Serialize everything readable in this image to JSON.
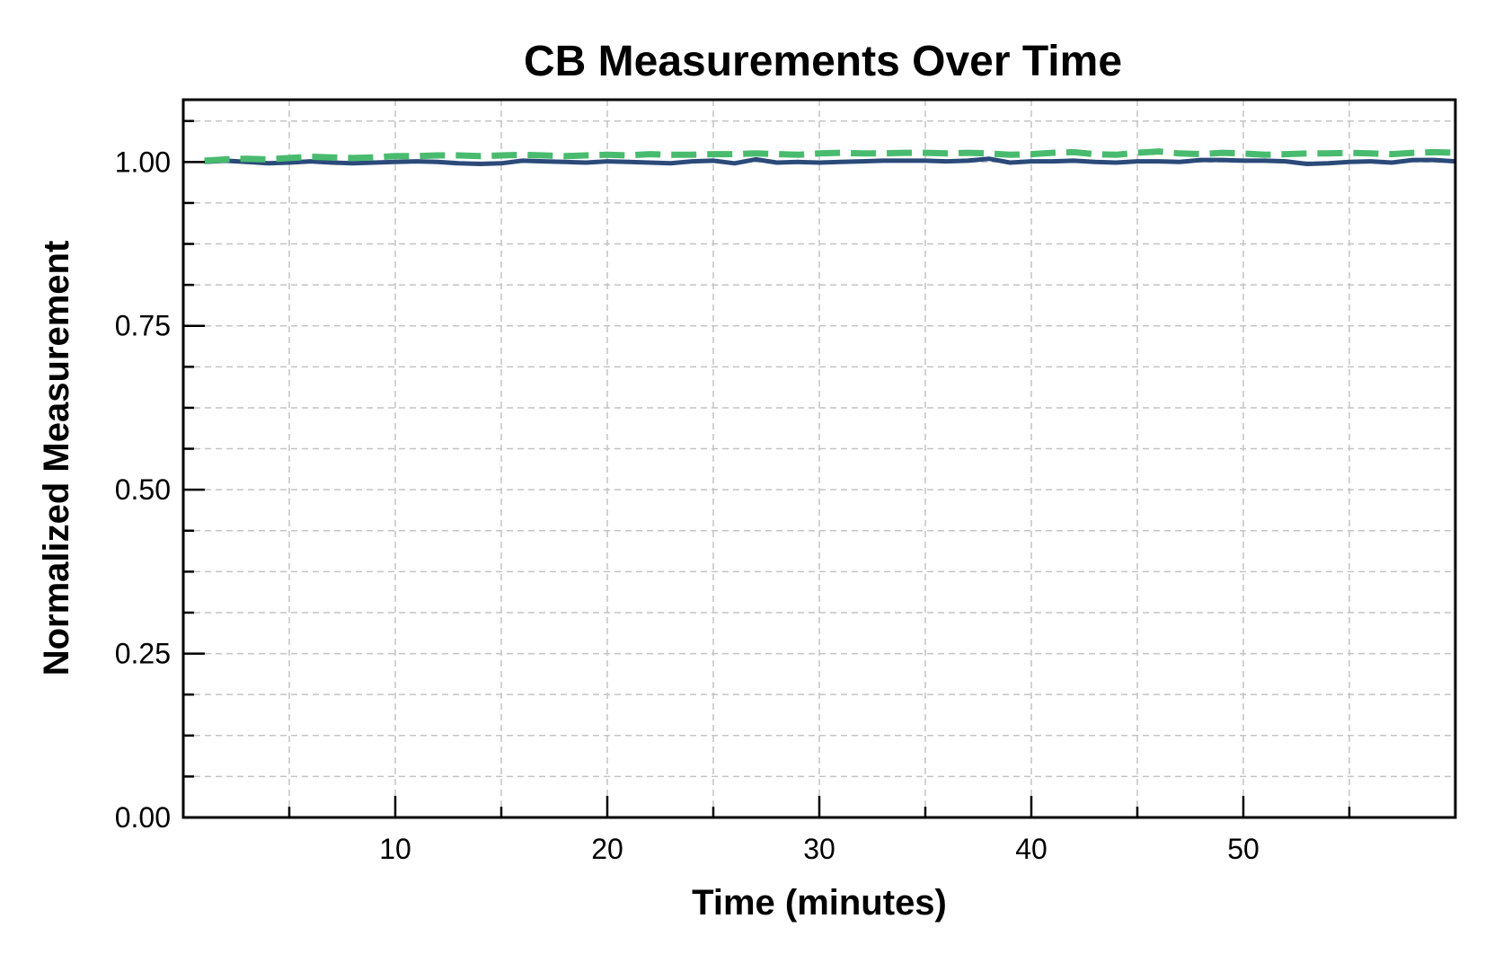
{
  "chart_data": {
    "type": "line",
    "title": "CB Measurements Over Time",
    "xlabel": "Time (minutes)",
    "ylabel": "Normalized Measurement",
    "xlim": [
      0,
      60
    ],
    "ylim": [
      0,
      1.095
    ],
    "x_major_ticks": [
      10,
      20,
      30,
      40,
      50
    ],
    "x_tick_labels": [
      "10",
      "20",
      "30",
      "40",
      "50"
    ],
    "x_minor_ticks": [
      5,
      15,
      25,
      35,
      45,
      55
    ],
    "y_major_ticks": [
      0,
      0.25,
      0.5,
      0.75,
      1.0
    ],
    "y_tick_labels": [
      "0.00",
      "0.25",
      "0.50",
      "0.75",
      "1.00"
    ],
    "y_minor_ticks": [
      0.0625,
      0.125,
      0.1875,
      0.3125,
      0.375,
      0.4375,
      0.5625,
      0.625,
      0.6875,
      0.8125,
      0.875,
      0.9375,
      1.0625
    ],
    "grid": true,
    "legend": "none",
    "x": [
      1,
      2,
      3,
      4,
      5,
      6,
      7,
      8,
      9,
      10,
      11,
      12,
      13,
      14,
      15,
      16,
      17,
      18,
      19,
      20,
      21,
      22,
      23,
      24,
      25,
      26,
      27,
      28,
      29,
      30,
      31,
      32,
      33,
      34,
      35,
      36,
      37,
      38,
      39,
      40,
      41,
      42,
      43,
      44,
      45,
      46,
      47,
      48,
      49,
      50,
      51,
      52,
      53,
      54,
      55,
      56,
      57,
      58,
      59,
      60
    ],
    "series": [
      {
        "color": "#2b4a7a",
        "style": "solid",
        "values": [
          1.0,
          1.002,
          1.0,
          0.998,
          0.999,
          1.001,
          0.999,
          0.998,
          0.999,
          1.0,
          1.001,
          1.0,
          0.998,
          0.997,
          0.998,
          1.002,
          1.001,
          1.0,
          0.999,
          1.001,
          1.0,
          0.999,
          0.998,
          1.001,
          1.002,
          0.998,
          1.004,
          0.999,
          1.0,
          0.999,
          1.0,
          1.001,
          1.002,
          1.002,
          1.002,
          1.001,
          1.002,
          1.005,
          0.999,
          1.001,
          1.001,
          1.002,
          1.0,
          0.999,
          1.001,
          1.001,
          1.0,
          1.003,
          1.003,
          1.002,
          1.002,
          1.001,
          0.997,
          0.998,
          1.0,
          1.001,
          0.999,
          1.003,
          1.003,
          1.001
        ]
      },
      {
        "color": "#49bb6f",
        "style": "dashed",
        "values": [
          1.002,
          1.004,
          1.005,
          1.004,
          1.006,
          1.008,
          1.007,
          1.006,
          1.007,
          1.009,
          1.009,
          1.01,
          1.01,
          1.009,
          1.01,
          1.011,
          1.01,
          1.009,
          1.01,
          1.011,
          1.01,
          1.012,
          1.011,
          1.011,
          1.012,
          1.012,
          1.013,
          1.012,
          1.011,
          1.013,
          1.014,
          1.013,
          1.013,
          1.014,
          1.014,
          1.013,
          1.014,
          1.013,
          1.011,
          1.012,
          1.014,
          1.015,
          1.012,
          1.011,
          1.014,
          1.016,
          1.013,
          1.012,
          1.014,
          1.013,
          1.011,
          1.012,
          1.013,
          1.013,
          1.014,
          1.013,
          1.012,
          1.014,
          1.015,
          1.014
        ]
      }
    ]
  }
}
